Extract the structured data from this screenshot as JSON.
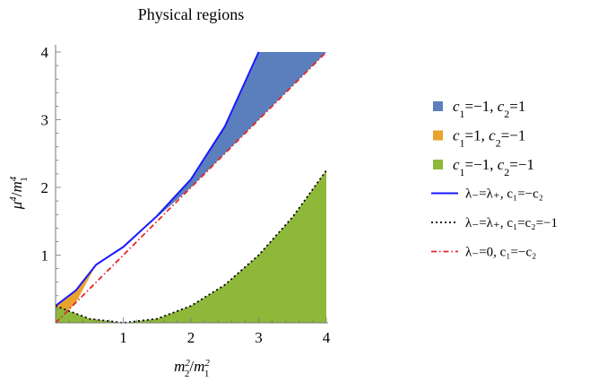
{
  "chart_data": {
    "type": "area",
    "title": "Physical regions",
    "xlabel": {
      "base": "m",
      "sup1": "2",
      "sub1": "2",
      "sep": "/",
      "base2": "m",
      "sup2": "2",
      "sub2": "1"
    },
    "ylabel": {
      "base": "μ",
      "sup1": "4",
      "sep": "/",
      "base2": "m",
      "sup2": "4",
      "sub2": "1"
    },
    "xlim": [
      0,
      4
    ],
    "ylim": [
      0,
      4
    ],
    "x_ticks": [
      "1",
      "2",
      "3",
      "4"
    ],
    "y_ticks": [
      "1",
      "2",
      "3",
      "4"
    ],
    "legend_position": "right",
    "regions": [
      {
        "name": "c1=-1, c2=1",
        "color": "#5b7fbd",
        "lower_curve": "y = x",
        "upper_curve": "y = (1 + x)^2 / 4 ... follows blue curve",
        "upper": [
          [
            0.6,
            0.86
          ],
          [
            1.0,
            1.12
          ],
          [
            1.5,
            1.58
          ],
          [
            2.0,
            2.12
          ],
          [
            2.5,
            2.9
          ],
          [
            3.0,
            4.0
          ],
          [
            4.0,
            4.0
          ]
        ],
        "lower": [
          [
            0.6,
            0.86
          ],
          [
            1.0,
            1.12
          ],
          [
            2.0,
            2.0
          ],
          [
            3.0,
            3.0
          ],
          [
            4.0,
            4.0
          ]
        ]
      },
      {
        "name": "c1=1, c2=-1",
        "color": "#e8a32c",
        "upper": [
          [
            0.0,
            0.25
          ],
          [
            0.3,
            0.48
          ],
          [
            0.6,
            0.86
          ]
        ],
        "lower": [
          [
            0.0,
            0.0
          ],
          [
            0.3,
            0.3
          ],
          [
            0.6,
            0.86
          ]
        ]
      },
      {
        "name": "c1=-1, c2=-1",
        "color": "#8eb83a",
        "upper": [
          [
            0.0,
            0.25
          ],
          [
            0.5,
            0.06
          ],
          [
            1.0,
            0.0
          ],
          [
            1.5,
            0.06
          ],
          [
            2.0,
            0.25
          ],
          [
            2.5,
            0.56
          ],
          [
            3.0,
            1.0
          ],
          [
            3.5,
            1.56
          ],
          [
            4.0,
            2.25
          ]
        ],
        "lower": [
          [
            0.0,
            0.0
          ],
          [
            4.0,
            0.0
          ]
        ]
      }
    ],
    "lines": [
      {
        "name": "λ₋=λ₊, c1=-c2",
        "color": "#1a1aff",
        "style": "solid",
        "points": [
          [
            0.0,
            0.25
          ],
          [
            0.3,
            0.48
          ],
          [
            0.6,
            0.86
          ],
          [
            1.0,
            1.12
          ],
          [
            1.5,
            1.58
          ],
          [
            2.0,
            2.12
          ],
          [
            2.5,
            2.9
          ],
          [
            3.0,
            4.0
          ]
        ]
      },
      {
        "name": "λ₋=λ₊, c1=c2=-1",
        "color": "#000000",
        "style": "dotted",
        "points": [
          [
            0.0,
            0.25
          ],
          [
            0.5,
            0.06
          ],
          [
            1.0,
            0.0
          ],
          [
            1.5,
            0.06
          ],
          [
            2.0,
            0.25
          ],
          [
            2.5,
            0.56
          ],
          [
            3.0,
            1.0
          ],
          [
            3.5,
            1.56
          ],
          [
            4.0,
            2.25
          ]
        ]
      },
      {
        "name": "λ₋=0, c1=-c2",
        "color": "#e0262a",
        "style": "dashdot",
        "points": [
          [
            0.0,
            0.0
          ],
          [
            4.0,
            4.0
          ]
        ]
      }
    ],
    "legend": [
      {
        "kind": "swatch",
        "color": "#5b7fbd",
        "c1v": "=−1, ",
        "c2v": "=1"
      },
      {
        "kind": "swatch",
        "color": "#e8a32c",
        "c1v": "=1, ",
        "c2v": "=−1"
      },
      {
        "kind": "swatch",
        "color": "#8eb83a",
        "c1v": "=−1, ",
        "c2v": "=−1"
      },
      {
        "kind": "line",
        "color": "#1a1aff",
        "style": "solid",
        "text": "λ₋=λ₊, c₁=−c₂"
      },
      {
        "kind": "line",
        "color": "#000000",
        "style": "dotted",
        "text": "λ₋=λ₊, c₁=c₂=−1"
      },
      {
        "kind": "line",
        "color": "#e0262a",
        "style": "dashdot",
        "text": "λ₋=0, c₁=−c₂"
      }
    ]
  }
}
